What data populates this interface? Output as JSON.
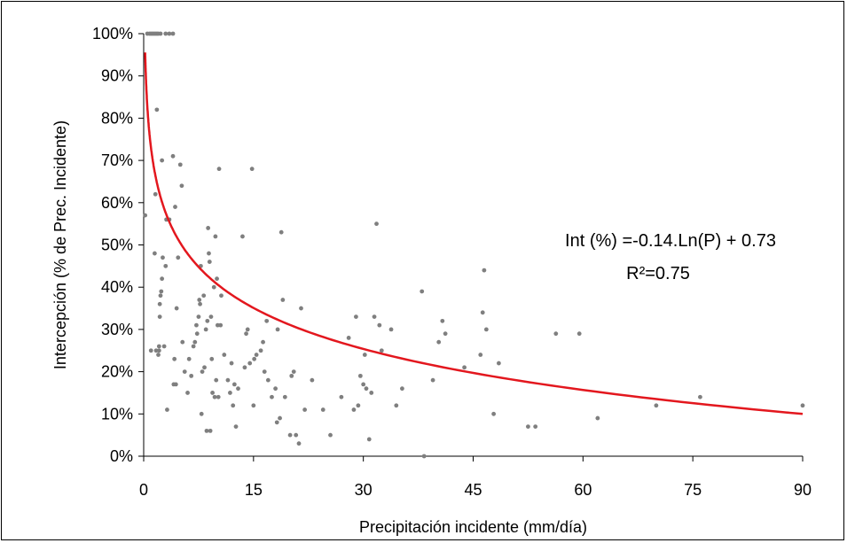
{
  "chart_data": {
    "type": "scatter",
    "xlabel": "Precipitación incidente (mm/día)",
    "ylabel": "Intercepción (% de Prec. Incidente)",
    "xlim": [
      0,
      90
    ],
    "ylim": [
      0,
      1
    ],
    "x_ticks": [
      "0",
      "15",
      "30",
      "45",
      "60",
      "75",
      "90"
    ],
    "y_ticks": [
      "0%",
      "10%",
      "20%",
      "30%",
      "40%",
      "50%",
      "60%",
      "70%",
      "80%",
      "90%",
      "100%"
    ],
    "grid": false,
    "legend": "none",
    "point_color": "#7f7f7f",
    "line_color": "#e3171e",
    "annotation": {
      "equation": "Int (%) =-0.14.Ln(P) + 0.73",
      "r_squared": "R²=0.75"
    },
    "fit": {
      "model": "logarithmic",
      "a": -0.14,
      "b": 0.73,
      "x_range": [
        0.2,
        90
      ]
    },
    "points": [
      [
        0.2,
        0.57
      ],
      [
        0.5,
        1.0
      ],
      [
        0.8,
        1.0
      ],
      [
        1.0,
        1.0
      ],
      [
        1.2,
        1.0
      ],
      [
        1.4,
        1.0
      ],
      [
        1.6,
        1.0
      ],
      [
        1.8,
        1.0
      ],
      [
        2.0,
        1.0
      ],
      [
        2.3,
        1.0
      ],
      [
        3.0,
        1.0
      ],
      [
        3.5,
        1.0
      ],
      [
        4.0,
        1.0
      ],
      [
        1.0,
        0.25
      ],
      [
        1.5,
        0.48
      ],
      [
        1.6,
        0.62
      ],
      [
        1.8,
        0.82
      ],
      [
        1.7,
        0.25
      ],
      [
        2.0,
        0.24
      ],
      [
        2.1,
        0.25
      ],
      [
        2.1,
        0.26
      ],
      [
        2.2,
        0.36
      ],
      [
        2.2,
        0.33
      ],
      [
        2.3,
        0.38
      ],
      [
        2.4,
        0.39
      ],
      [
        2.5,
        0.42
      ],
      [
        2.6,
        0.47
      ],
      [
        2.5,
        0.7
      ],
      [
        2.8,
        0.26
      ],
      [
        3.0,
        0.45
      ],
      [
        3.1,
        0.56
      ],
      [
        3.2,
        0.11
      ],
      [
        3.5,
        0.56
      ],
      [
        4.0,
        0.71
      ],
      [
        4.1,
        0.17
      ],
      [
        4.2,
        0.23
      ],
      [
        4.3,
        0.59
      ],
      [
        4.4,
        0.17
      ],
      [
        4.5,
        0.35
      ],
      [
        4.7,
        0.47
      ],
      [
        5.0,
        0.69
      ],
      [
        5.2,
        0.64
      ],
      [
        5.3,
        0.27
      ],
      [
        5.6,
        0.2
      ],
      [
        6.0,
        0.15
      ],
      [
        6.2,
        0.23
      ],
      [
        6.5,
        0.19
      ],
      [
        6.8,
        0.26
      ],
      [
        7.0,
        0.27
      ],
      [
        7.2,
        0.31
      ],
      [
        7.3,
        0.29
      ],
      [
        7.5,
        0.33
      ],
      [
        7.6,
        0.37
      ],
      [
        7.7,
        0.36
      ],
      [
        7.8,
        0.45
      ],
      [
        7.9,
        0.1
      ],
      [
        8.0,
        0.2
      ],
      [
        8.2,
        0.38
      ],
      [
        8.3,
        0.21
      ],
      [
        8.5,
        0.3
      ],
      [
        8.6,
        0.06
      ],
      [
        8.7,
        0.32
      ],
      [
        8.8,
        0.54
      ],
      [
        8.9,
        0.48
      ],
      [
        9.0,
        0.46
      ],
      [
        9.1,
        0.06
      ],
      [
        9.2,
        0.33
      ],
      [
        9.3,
        0.23
      ],
      [
        9.4,
        0.15
      ],
      [
        9.6,
        0.4
      ],
      [
        9.7,
        0.14
      ],
      [
        9.8,
        0.52
      ],
      [
        9.9,
        0.18
      ],
      [
        10.0,
        0.42
      ],
      [
        10.1,
        0.31
      ],
      [
        10.2,
        0.14
      ],
      [
        10.3,
        0.68
      ],
      [
        10.5,
        0.31
      ],
      [
        10.6,
        0.38
      ],
      [
        11.0,
        0.24
      ],
      [
        11.5,
        0.18
      ],
      [
        11.8,
        0.15
      ],
      [
        12.0,
        0.22
      ],
      [
        12.2,
        0.12
      ],
      [
        12.4,
        0.17
      ],
      [
        12.6,
        0.07
      ],
      [
        12.9,
        0.16
      ],
      [
        13.5,
        0.52
      ],
      [
        13.8,
        0.21
      ],
      [
        14.0,
        0.29
      ],
      [
        14.2,
        0.3
      ],
      [
        14.5,
        0.22
      ],
      [
        14.8,
        0.68
      ],
      [
        15.0,
        0.12
      ],
      [
        15.1,
        0.23
      ],
      [
        15.4,
        0.24
      ],
      [
        16.0,
        0.25
      ],
      [
        16.3,
        0.27
      ],
      [
        16.5,
        0.2
      ],
      [
        16.8,
        0.32
      ],
      [
        17.0,
        0.18
      ],
      [
        17.5,
        0.14
      ],
      [
        18.0,
        0.16
      ],
      [
        18.2,
        0.08
      ],
      [
        18.3,
        0.3
      ],
      [
        18.6,
        0.09
      ],
      [
        18.8,
        0.53
      ],
      [
        19.0,
        0.37
      ],
      [
        19.3,
        0.14
      ],
      [
        20.0,
        0.05
      ],
      [
        20.2,
        0.19
      ],
      [
        20.5,
        0.2
      ],
      [
        20.8,
        0.05
      ],
      [
        21.2,
        0.03
      ],
      [
        21.5,
        0.35
      ],
      [
        22.0,
        0.11
      ],
      [
        23.0,
        0.18
      ],
      [
        24.5,
        0.11
      ],
      [
        25.5,
        0.05
      ],
      [
        27.0,
        0.14
      ],
      [
        28.0,
        0.28
      ],
      [
        28.7,
        0.11
      ],
      [
        29.0,
        0.33
      ],
      [
        29.3,
        0.12
      ],
      [
        29.6,
        0.19
      ],
      [
        30.0,
        0.17
      ],
      [
        30.2,
        0.24
      ],
      [
        30.4,
        0.16
      ],
      [
        30.8,
        0.04
      ],
      [
        31.1,
        0.15
      ],
      [
        31.5,
        0.33
      ],
      [
        31.8,
        0.55
      ],
      [
        32.2,
        0.31
      ],
      [
        32.5,
        0.25
      ],
      [
        33.8,
        0.3
      ],
      [
        34.5,
        0.12
      ],
      [
        35.3,
        0.16
      ],
      [
        38.0,
        0.39
      ],
      [
        38.3,
        0.0
      ],
      [
        39.5,
        0.18
      ],
      [
        40.3,
        0.27
      ],
      [
        40.8,
        0.32
      ],
      [
        41.2,
        0.29
      ],
      [
        43.8,
        0.21
      ],
      [
        46.0,
        0.24
      ],
      [
        46.3,
        0.34
      ],
      [
        46.5,
        0.44
      ],
      [
        46.8,
        0.3
      ],
      [
        47.8,
        0.1
      ],
      [
        48.5,
        0.22
      ],
      [
        52.5,
        0.07
      ],
      [
        53.5,
        0.07
      ],
      [
        56.3,
        0.29
      ],
      [
        59.5,
        0.29
      ],
      [
        62.0,
        0.09
      ],
      [
        70.0,
        0.12
      ],
      [
        76.0,
        0.14
      ],
      [
        90.0,
        0.12
      ]
    ]
  }
}
